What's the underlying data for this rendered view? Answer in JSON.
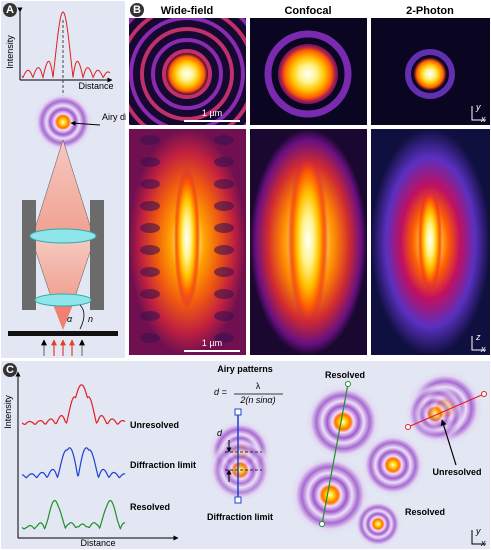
{
  "panel_a": {
    "label": "A",
    "y_axis": "Intensity",
    "x_axis": "Distance",
    "airy_label": "Airy disc",
    "refractive_index": "n",
    "angle": "α"
  },
  "panel_b": {
    "label": "B",
    "columns": [
      "Wide-field",
      "Confocal",
      "2-Photon"
    ],
    "scale_bars": [
      "1 µm",
      "1 µm"
    ],
    "axes_xy": [
      "y",
      "x"
    ],
    "axes_xz": [
      "z",
      "x"
    ]
  },
  "panel_c": {
    "label": "C",
    "y_axis": "Intensity",
    "x_axis": "Distance",
    "traces": [
      "Unresolved",
      "Diffraction limit",
      "Resolved"
    ],
    "title": "Airy patterns",
    "formula": {
      "lhs": "d =",
      "numerator": "λ",
      "denominator": "2(n sinα)"
    },
    "distance_label": "d",
    "diffraction_label": "Diffraction limit",
    "spot_labels": [
      "Resolved",
      "Unresolved",
      "Resolved"
    ],
    "axes": [
      "y",
      "x"
    ]
  }
}
